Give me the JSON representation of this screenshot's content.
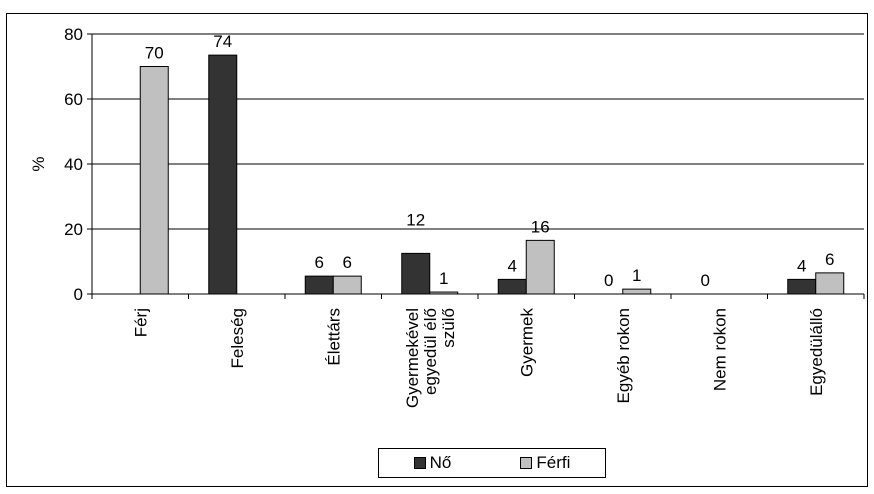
{
  "chart_data": {
    "type": "bar",
    "title": "",
    "xlabel": "",
    "ylabel": "%",
    "ylim": [
      0,
      80
    ],
    "yticks": [
      0,
      20,
      40,
      60,
      80
    ],
    "categories": [
      "Férj",
      "Feleség",
      "Élettárs",
      "Gyermekével egyedül élő szülő",
      "Gyermek",
      "Egyéb rokon",
      "Nem rokon",
      "Egyedülálló"
    ],
    "category_lines": [
      [
        "Férj"
      ],
      [
        "Feleség"
      ],
      [
        "Élettárs"
      ],
      [
        "Gyermekével",
        "egyedül élő",
        "szülő"
      ],
      [
        "Gyermek"
      ],
      [
        "Egyéb rokon"
      ],
      [
        "Nem rokon"
      ],
      [
        "Egyedülálló"
      ]
    ],
    "series": [
      {
        "name": "Nő",
        "color": "#333333",
        "values": [
          null,
          74,
          6,
          12,
          4,
          0,
          0,
          4
        ],
        "labels": [
          "",
          "74",
          "6",
          "12",
          "4",
          "0",
          "0",
          "4"
        ],
        "plot_values": [
          null,
          73.5,
          5.5,
          12.5,
          4.5,
          0,
          0,
          4.5
        ]
      },
      {
        "name": "Férfi",
        "color": "#c0c0c0",
        "values": [
          70,
          null,
          6,
          1,
          16,
          1,
          null,
          6
        ],
        "labels": [
          "70",
          "",
          "6",
          "1",
          "16",
          "1",
          "",
          "6"
        ],
        "plot_values": [
          70,
          null,
          5.5,
          0.6,
          16.5,
          1.5,
          null,
          6.5
        ]
      }
    ],
    "grid": true,
    "legend_position": "bottom"
  }
}
